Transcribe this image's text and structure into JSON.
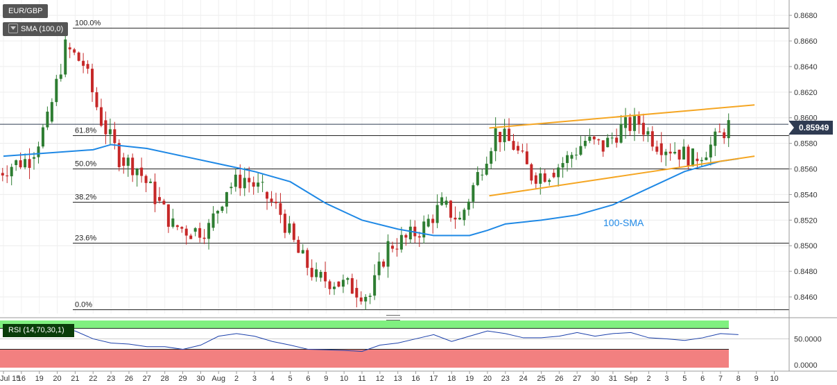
{
  "symbol": "EUR/GBP",
  "indicator_label": "SMA (100,0)",
  "rsi_label": "RSI (14,70,30,1)",
  "current_price_label": "0.85949",
  "sma_annotation": "100-SMA",
  "colors": {
    "up": "#2e7d32",
    "down": "#c62828",
    "sma": "#1e88e5",
    "trendline": "#f5a623",
    "rsi_line": "#1a3faa",
    "overbought_zone": "#80f080",
    "oversold_zone": "#f28080",
    "price_tag_bg": "#2f3b52"
  },
  "chart_data": [
    {
      "type": "candlestick",
      "title": "EUR/GBP",
      "y_axis": {
        "ylim": [
          0.8447,
          0.8692
        ],
        "ticks": [
          "0.8460",
          "0.8480",
          "0.8500",
          "0.8520",
          "0.8540",
          "0.8560",
          "0.8580",
          "0.8600",
          "0.8620",
          "0.8640",
          "0.8660",
          "0.8680"
        ]
      },
      "x_axis": {
        "ticks": [
          "Jul 15",
          "16",
          "19",
          "20",
          "21",
          "22",
          "23",
          "26",
          "27",
          "28",
          "29",
          "30",
          "Aug",
          "2",
          "3",
          "4",
          "5",
          "6",
          "9",
          "10",
          "11",
          "12",
          "13",
          "16",
          "17",
          "18",
          "19",
          "20",
          "23",
          "24",
          "25",
          "26",
          "27",
          "30",
          "31",
          "Sep",
          "2",
          "3",
          "5",
          "6",
          "7",
          "8",
          "9",
          "10"
        ]
      },
      "daily_closes": [
        0.8563,
        0.8568,
        0.8597,
        0.8655,
        0.8642,
        0.8598,
        0.8569,
        0.8561,
        0.8538,
        0.8516,
        0.8511,
        0.8514,
        0.8545,
        0.8553,
        0.8542,
        0.8525,
        0.8494,
        0.8475,
        0.8472,
        0.8467,
        0.8461,
        0.85,
        0.8505,
        0.8515,
        0.8532,
        0.852,
        0.8555,
        0.8589,
        0.8578,
        0.8555,
        0.8557,
        0.8568,
        0.8582,
        0.8577,
        0.8592,
        0.8596,
        0.858,
        0.8575,
        0.8568,
        0.8578,
        0.8594
      ],
      "fibonacci": [
        {
          "label": "100.0%",
          "level": 0.867
        },
        {
          "label": "61.8%",
          "level": 0.8586
        },
        {
          "label": "50.0%",
          "level": 0.856
        },
        {
          "label": "38.2%",
          "level": 0.8534
        },
        {
          "label": "23.6%",
          "level": 0.8502
        },
        {
          "label": "0.0%",
          "level": 0.845
        }
      ],
      "current_price": 0.85949,
      "sma_100": {
        "label": "100-SMA",
        "points": [
          [
            0,
            0.857
          ],
          [
            5,
            0.8575
          ],
          [
            6,
            0.8579
          ],
          [
            8,
            0.8576
          ],
          [
            10,
            0.857
          ],
          [
            12,
            0.8564
          ],
          [
            14,
            0.8558
          ],
          [
            16,
            0.855
          ],
          [
            18,
            0.8533
          ],
          [
            20,
            0.852
          ],
          [
            22,
            0.8513
          ],
          [
            24,
            0.8508
          ],
          [
            26,
            0.8508
          ],
          [
            27,
            0.8512
          ],
          [
            28,
            0.8517
          ],
          [
            30,
            0.852
          ],
          [
            32,
            0.8524
          ],
          [
            34,
            0.8532
          ],
          [
            36,
            0.8545
          ],
          [
            38,
            0.8558
          ],
          [
            40,
            0.8566
          ],
          [
            41,
            0.8568
          ]
        ]
      },
      "trendlines": [
        {
          "name": "channel-upper",
          "from": [
            27.1,
            0.8592
          ],
          "to": [
            41.9,
            0.861
          ]
        },
        {
          "name": "channel-lower",
          "from": [
            27.1,
            0.8539
          ],
          "to": [
            41.9,
            0.857
          ]
        }
      ]
    },
    {
      "type": "line",
      "title": "RSI (14,70,30,1)",
      "y_axis": {
        "ylim": [
          -5,
          85
        ],
        "ticks": [
          "50.0000",
          "0.0000"
        ]
      },
      "zones": {
        "overbought": 70,
        "oversold": 30
      },
      "rsi_values": [
        58,
        55,
        62,
        68,
        65,
        50,
        42,
        40,
        35,
        35,
        30,
        38,
        55,
        60,
        55,
        45,
        38,
        30,
        29,
        28,
        26,
        38,
        42,
        50,
        58,
        45,
        55,
        65,
        60,
        52,
        52,
        55,
        62,
        55,
        60,
        62,
        52,
        50,
        47,
        52,
        60,
        58
      ]
    }
  ]
}
